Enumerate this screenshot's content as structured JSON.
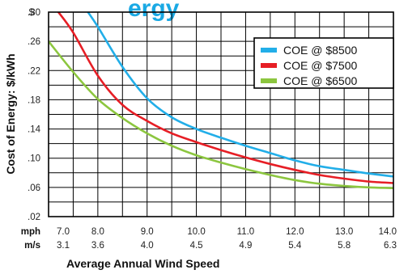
{
  "title_fragment": "ergy",
  "chart_data": {
    "type": "line",
    "ylabel": "Cost of Energy: $/kWh",
    "xlabel": "Average Annual Wind Speed",
    "y_prefix": "$",
    "ylim": [
      0.02,
      0.3
    ],
    "yticks": [
      ".30",
      ".26",
      ".22",
      ".18",
      ".14",
      ".10",
      ".06",
      ".02"
    ],
    "xlim": [
      7.0,
      14.0
    ],
    "x_unit_labels": {
      "primary": "mph",
      "secondary": "m/s"
    },
    "xticks_mph": [
      "7.0",
      "8.0",
      "9.0",
      "10.0",
      "11.0",
      "12.0",
      "13.0",
      "14.0"
    ],
    "xticks_ms": [
      "3.1",
      "3.6",
      "4.0",
      "4.5",
      "4.9",
      "5.4",
      "5.8",
      "6.3"
    ],
    "grid": true,
    "legend_position": "top-right",
    "series": [
      {
        "name": "COE @ $8500",
        "color": "#22aee8",
        "x": [
          7.8,
          8.0,
          8.5,
          9.0,
          9.5,
          10.0,
          10.5,
          11.0,
          11.5,
          12.0,
          12.5,
          13.0,
          13.5,
          14.0
        ],
        "y": [
          0.3,
          0.28,
          0.225,
          0.182,
          0.156,
          0.14,
          0.128,
          0.117,
          0.107,
          0.097,
          0.089,
          0.084,
          0.079,
          0.075
        ]
      },
      {
        "name": "COE @ $7500",
        "color": "#e61e25",
        "x": [
          7.2,
          7.5,
          8.0,
          8.5,
          9.0,
          9.5,
          10.0,
          10.5,
          11.0,
          11.5,
          12.0,
          12.5,
          13.0,
          13.5,
          14.0
        ],
        "y": [
          0.3,
          0.272,
          0.213,
          0.173,
          0.151,
          0.134,
          0.122,
          0.111,
          0.101,
          0.092,
          0.084,
          0.077,
          0.072,
          0.068,
          0.066
        ]
      },
      {
        "name": "COE @ $6500",
        "color": "#8cc63f",
        "x": [
          7.0,
          7.5,
          8.0,
          8.5,
          9.0,
          9.5,
          10.0,
          10.5,
          11.0,
          11.5,
          12.0,
          12.5,
          13.0,
          13.5,
          14.0
        ],
        "y": [
          0.26,
          0.218,
          0.181,
          0.155,
          0.134,
          0.117,
          0.104,
          0.094,
          0.085,
          0.077,
          0.07,
          0.065,
          0.062,
          0.06,
          0.059
        ]
      }
    ]
  }
}
